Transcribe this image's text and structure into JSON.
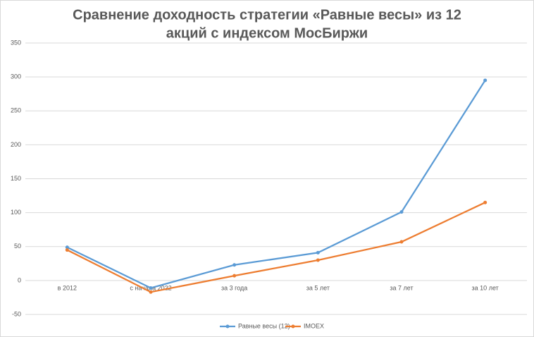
{
  "chart_data": {
    "type": "line",
    "title": [
      "Сравнение доходность стратегии «Равные весы» из 12",
      "акций с индексом МосБиржи"
    ],
    "categories": [
      "в 2012",
      "с начала 2022",
      "за 3 года",
      "за 5 лет",
      "за 7 лет",
      "за 10 лет"
    ],
    "series": [
      {
        "name": "Равные весы (12)",
        "color": "#5b9bd5",
        "values": [
          49,
          -11,
          23,
          41,
          101,
          295
        ]
      },
      {
        "name": "IMOEX",
        "color": "#ed7d31",
        "values": [
          45,
          -17,
          7,
          30,
          57,
          115
        ]
      }
    ],
    "ylim": [
      -50,
      350
    ],
    "yticks": [
      -50,
      0,
      50,
      100,
      150,
      200,
      250,
      300,
      350
    ],
    "grid": true,
    "legend": "bottom"
  }
}
